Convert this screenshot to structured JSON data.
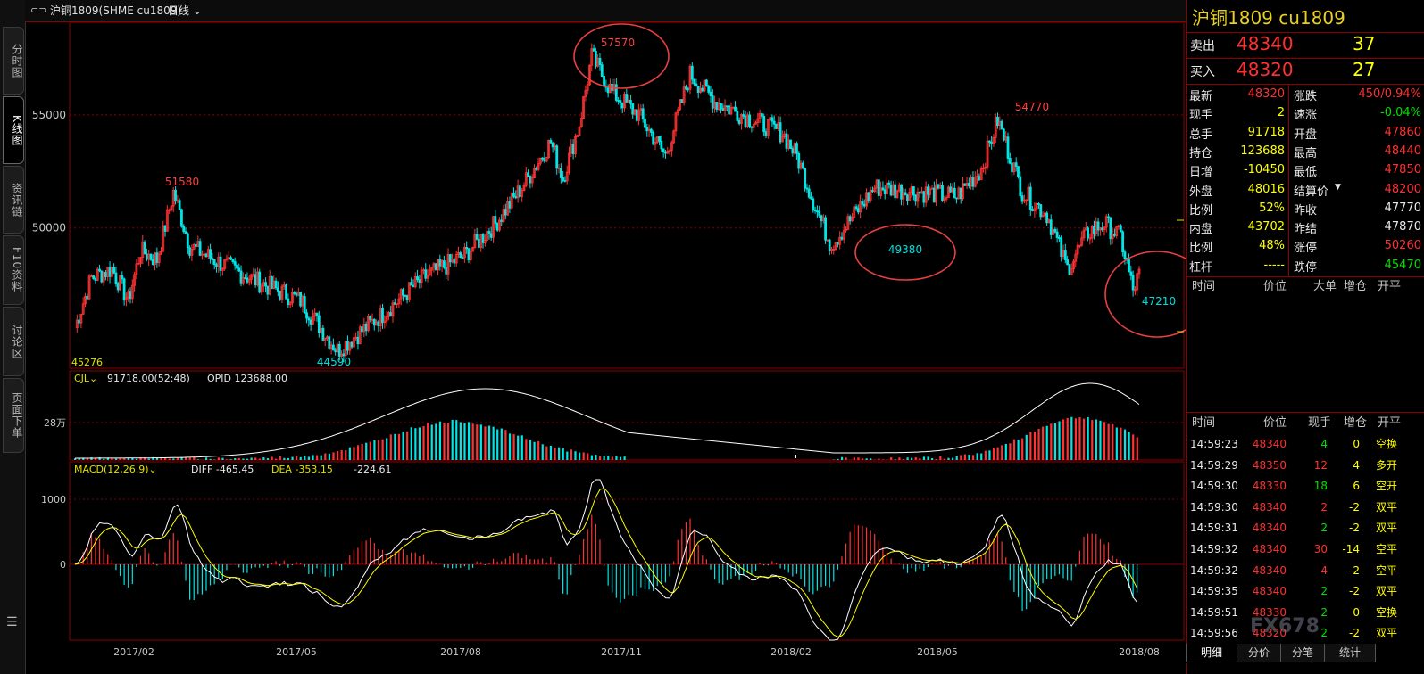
{
  "sidebar": {
    "tabs": [
      {
        "label": "分时图"
      },
      {
        "label": "K线图",
        "active": true
      },
      {
        "label": "资讯链"
      },
      {
        "label": "F10资料"
      },
      {
        "label": "讨论区"
      },
      {
        "label": "页面下单"
      }
    ],
    "menu_icon": "menu-icon"
  },
  "topbar": {
    "symbol": "沪铜1809(SHME cu1809)",
    "period": "日线",
    "icon": "link-icon"
  },
  "chart": {
    "price_labels": {
      "high": "57570",
      "peak2": "54770",
      "left_peak": "51580",
      "low1": "49380",
      "low2": "47210",
      "low0": "44590",
      "left_low": "45276"
    },
    "y_ticks": [
      "55000",
      "50000"
    ],
    "vol_label": "CJL",
    "vol_value": "91718.00(52:48)",
    "opid": "OPID 123688.00",
    "vol_tick": "28万",
    "macd_label": "MACD(12,26,9)",
    "diff": "DIFF -465.45",
    "dea": "DEA -353.15",
    "macd_val": "-224.61",
    "macd_ticks": [
      "1000",
      "0"
    ],
    "x_ticks": [
      "2017/02",
      "2017/05",
      "2017/08",
      "2017/11",
      "2018/02",
      "2018/05",
      "2018/08"
    ],
    "colors": {
      "up": "#ff3333",
      "down": "#00e5e5",
      "ma": "#ffffff",
      "dea": "#ffff00",
      "circle": "#e84040"
    }
  },
  "chart_data": {
    "type": "candlestick",
    "title": "沪铜1809 日线",
    "x_range": [
      "2017/01",
      "2018/08"
    ],
    "ylim": [
      44000,
      58500
    ],
    "annotated_points": [
      {
        "label": "45276",
        "value": 45276,
        "date": "2017/01"
      },
      {
        "label": "51580",
        "value": 51580,
        "date": "2017/02"
      },
      {
        "label": "44590",
        "value": 44590,
        "date": "2017/05"
      },
      {
        "label": "57570",
        "value": 57570,
        "date": "2017/10"
      },
      {
        "label": "49380",
        "value": 49380,
        "date": "2018/04"
      },
      {
        "label": "54770",
        "value": 54770,
        "date": "2018/06"
      },
      {
        "label": "47210",
        "value": 47210,
        "date": "2018/08"
      }
    ]
  },
  "quote": {
    "title": "沪铜1809  cu1809",
    "sell": {
      "label": "卖出",
      "price": "48340",
      "qty": "37"
    },
    "buy": {
      "label": "买入",
      "price": "48320",
      "qty": "27"
    },
    "left": [
      {
        "k": "最新",
        "v": "48320",
        "c": "c-red"
      },
      {
        "k": "现手",
        "v": "2",
        "c": "c-yellow"
      },
      {
        "k": "总手",
        "v": "91718",
        "c": "c-yellow"
      },
      {
        "k": "持仓",
        "v": "123688",
        "c": "c-yellow"
      },
      {
        "k": "日增",
        "v": "-10450",
        "c": "c-yellow"
      },
      {
        "k": "外盘",
        "v": "48016",
        "c": "c-yellow"
      },
      {
        "k": "比例",
        "v": "52%",
        "c": "c-yellow"
      },
      {
        "k": "内盘",
        "v": "43702",
        "c": "c-yellow"
      },
      {
        "k": "比例",
        "v": "48%",
        "c": "c-yellow"
      },
      {
        "k": "杠杆",
        "v": "-----",
        "c": "c-yellow"
      }
    ],
    "right": [
      {
        "k": "涨跌",
        "v": "450/0.94%",
        "c": "c-red"
      },
      {
        "k": "速涨",
        "v": "-0.04%",
        "c": "c-green"
      },
      {
        "k": "开盘",
        "v": "47860",
        "c": "c-red"
      },
      {
        "k": "最高",
        "v": "48440",
        "c": "c-red"
      },
      {
        "k": "最低",
        "v": "47850",
        "c": "c-red"
      },
      {
        "k": "结算价",
        "v": "48200",
        "c": "c-red"
      },
      {
        "k": "昨收",
        "v": "47770",
        "c": "c-white"
      },
      {
        "k": "昨结",
        "v": "47870",
        "c": "c-white"
      },
      {
        "k": "涨停",
        "v": "50260",
        "c": "c-red"
      },
      {
        "k": "跌停",
        "v": "45470",
        "c": "c-green"
      }
    ],
    "upper_header": [
      "时间",
      "价位",
      "大单",
      "增仓",
      "开平"
    ],
    "ticks_header": [
      "时间",
      "价位",
      "现手",
      "增仓",
      "开平"
    ],
    "ticks": [
      {
        "t": "14:59:23",
        "p": "48340",
        "n": "4",
        "z": "0",
        "o": "空换",
        "nc": "c-green",
        "oc": "c-yellow"
      },
      {
        "t": "14:59:29",
        "p": "48350",
        "n": "12",
        "z": "4",
        "o": "多开",
        "nc": "c-red",
        "oc": "c-yellow"
      },
      {
        "t": "14:59:30",
        "p": "48330",
        "n": "18",
        "z": "6",
        "o": "空开",
        "nc": "c-green",
        "oc": "c-yellow"
      },
      {
        "t": "14:59:30",
        "p": "48340",
        "n": "2",
        "z": "-2",
        "o": "双平",
        "nc": "c-red",
        "oc": "c-yellow"
      },
      {
        "t": "14:59:31",
        "p": "48340",
        "n": "2",
        "z": "-2",
        "o": "双平",
        "nc": "c-green",
        "oc": "c-yellow"
      },
      {
        "t": "14:59:32",
        "p": "48340",
        "n": "30",
        "z": "-14",
        "o": "空平",
        "nc": "c-red",
        "oc": "c-yellow"
      },
      {
        "t": "14:59:32",
        "p": "48340",
        "n": "4",
        "z": "-2",
        "o": "空平",
        "nc": "c-red",
        "oc": "c-yellow"
      },
      {
        "t": "14:59:35",
        "p": "48340",
        "n": "2",
        "z": "-2",
        "o": "双平",
        "nc": "c-green",
        "oc": "c-yellow"
      },
      {
        "t": "14:59:51",
        "p": "48330",
        "n": "2",
        "z": "0",
        "o": "空换",
        "nc": "c-green",
        "oc": "c-yellow"
      },
      {
        "t": "14:59:56",
        "p": "48320",
        "n": "2",
        "z": "-2",
        "o": "双平",
        "nc": "c-green",
        "oc": "c-yellow"
      }
    ],
    "bottom_tabs": [
      "明细",
      "分价",
      "分笔",
      "统计"
    ],
    "watermark": "FX678"
  }
}
